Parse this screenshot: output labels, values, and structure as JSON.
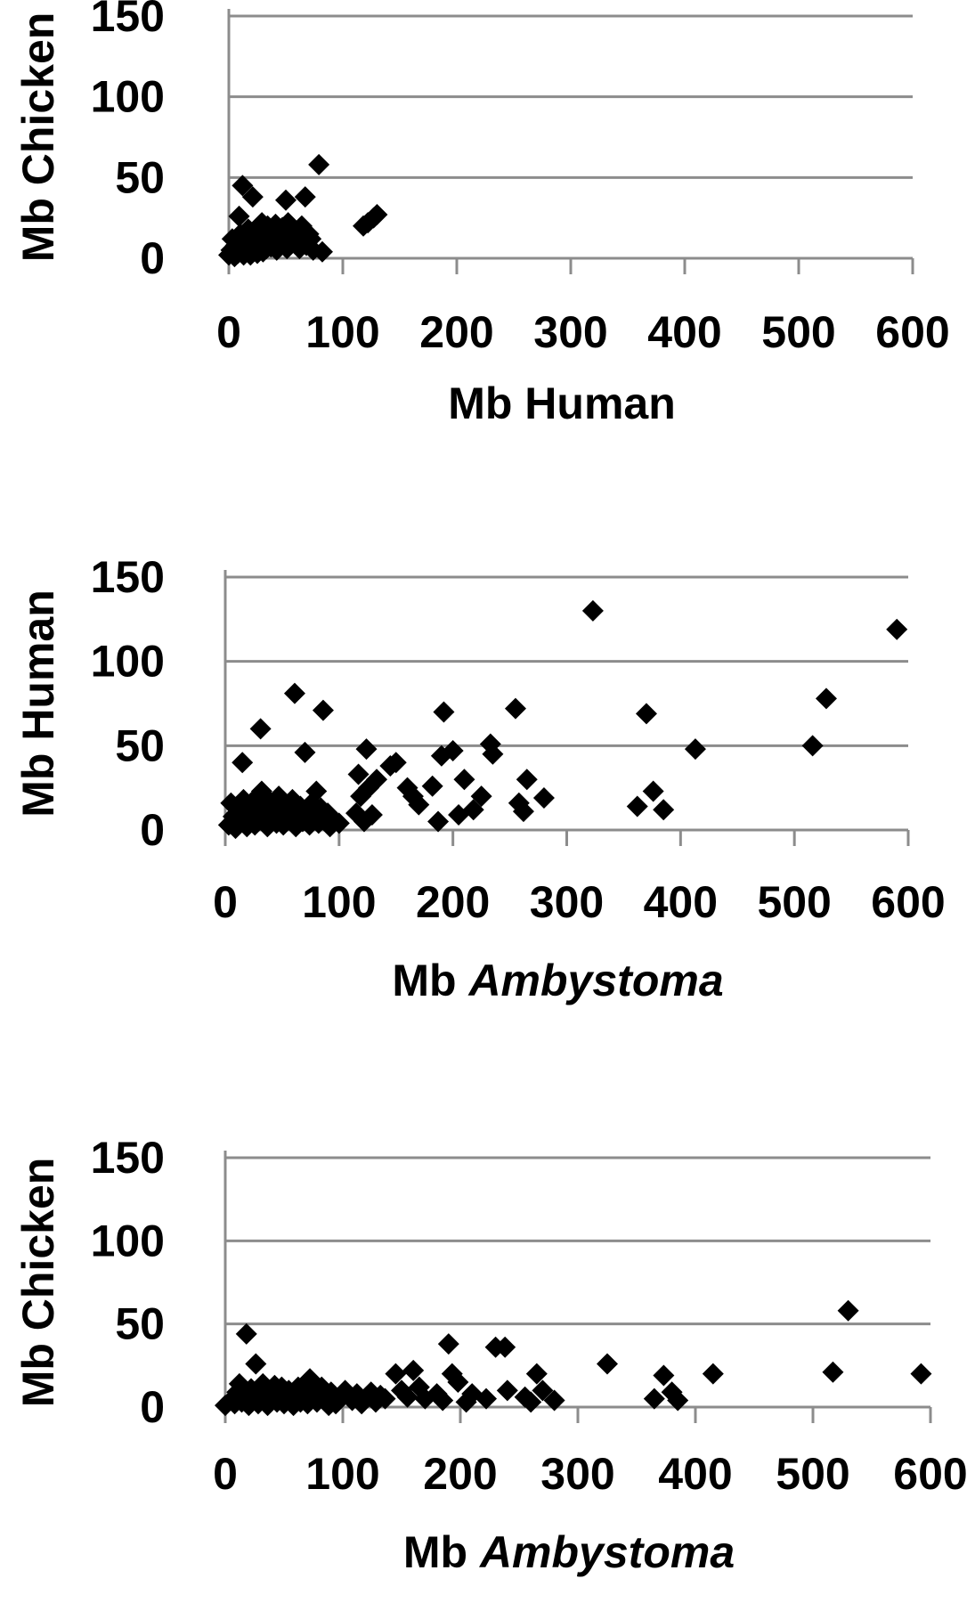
{
  "chart_data": [
    {
      "type": "scatter",
      "xlabel": "Mb Human",
      "ylabel": "Mb Chicken",
      "xlim": [
        0,
        600
      ],
      "ylim": [
        0,
        150
      ],
      "x_ticks": [
        "0",
        "100",
        "200",
        "300",
        "400",
        "500",
        "600"
      ],
      "y_ticks": [
        "0",
        "50",
        "100",
        "150"
      ],
      "grid": "horizontal",
      "marker": "diamond",
      "series": [
        {
          "points": [
            [
              0,
              2
            ],
            [
              2,
              5
            ],
            [
              3,
              12
            ],
            [
              5,
              1
            ],
            [
              6,
              8
            ],
            [
              8,
              3
            ],
            [
              9,
              26
            ],
            [
              10,
              15
            ],
            [
              11,
              6
            ],
            [
              12,
              45
            ],
            [
              13,
              2
            ],
            [
              14,
              10
            ],
            [
              15,
              4
            ],
            [
              17,
              18
            ],
            [
              18,
              7
            ],
            [
              19,
              2
            ],
            [
              20,
              13
            ],
            [
              21,
              38
            ],
            [
              23,
              5
            ],
            [
              24,
              9
            ],
            [
              25,
              3
            ],
            [
              27,
              16
            ],
            [
              28,
              8
            ],
            [
              29,
              22
            ],
            [
              30,
              4
            ],
            [
              31,
              11
            ],
            [
              33,
              6
            ],
            [
              34,
              20
            ],
            [
              35,
              14
            ],
            [
              37,
              7
            ],
            [
              38,
              17
            ],
            [
              40,
              10
            ],
            [
              41,
              21
            ],
            [
              42,
              5
            ],
            [
              44,
              15
            ],
            [
              45,
              8
            ],
            [
              47,
              19
            ],
            [
              48,
              12
            ],
            [
              50,
              36
            ],
            [
              51,
              6
            ],
            [
              52,
              22
            ],
            [
              54,
              10
            ],
            [
              56,
              17
            ],
            [
              58,
              9
            ],
            [
              60,
              14
            ],
            [
              62,
              6
            ],
            [
              64,
              20
            ],
            [
              66,
              11
            ],
            [
              67,
              38
            ],
            [
              68,
              8
            ],
            [
              70,
              15
            ],
            [
              72,
              12
            ],
            [
              74,
              5
            ],
            [
              79,
              58
            ],
            [
              82,
              4
            ],
            [
              118,
              20
            ],
            [
              122,
              22
            ],
            [
              127,
              25
            ],
            [
              130,
              27
            ]
          ]
        }
      ]
    },
    {
      "type": "scatter",
      "xlabel": "Mb Ambystoma",
      "ylabel": "Mb Human",
      "xlim": [
        0,
        600
      ],
      "ylim": [
        0,
        150
      ],
      "x_ticks": [
        "0",
        "100",
        "200",
        "300",
        "400",
        "500",
        "600"
      ],
      "y_ticks": [
        "0",
        "50",
        "100",
        "150"
      ],
      "grid": "horizontal",
      "marker": "diamond",
      "series": [
        {
          "points": [
            [
              3,
              3
            ],
            [
              5,
              16
            ],
            [
              7,
              8
            ],
            [
              9,
              1
            ],
            [
              11,
              12
            ],
            [
              13,
              4
            ],
            [
              15,
              40
            ],
            [
              16,
              18
            ],
            [
              17,
              7
            ],
            [
              19,
              2
            ],
            [
              20,
              14
            ],
            [
              22,
              6
            ],
            [
              24,
              10
            ],
            [
              26,
              3
            ],
            [
              27,
              19
            ],
            [
              29,
              8
            ],
            [
              31,
              60
            ],
            [
              32,
              23
            ],
            [
              33,
              5
            ],
            [
              35,
              13
            ],
            [
              37,
              2
            ],
            [
              39,
              17
            ],
            [
              41,
              7
            ],
            [
              43,
              11
            ],
            [
              45,
              4
            ],
            [
              47,
              20
            ],
            [
              49,
              9
            ],
            [
              51,
              3
            ],
            [
              53,
              15
            ],
            [
              55,
              6
            ],
            [
              57,
              12
            ],
            [
              59,
              18
            ],
            [
              61,
              81
            ],
            [
              62,
              2
            ],
            [
              64,
              9
            ],
            [
              66,
              14
            ],
            [
              68,
              5
            ],
            [
              70,
              46
            ],
            [
              72,
              11
            ],
            [
              74,
              3
            ],
            [
              76,
              16
            ],
            [
              78,
              8
            ],
            [
              80,
              23
            ],
            [
              82,
              4
            ],
            [
              84,
              13
            ],
            [
              86,
              71
            ],
            [
              88,
              7
            ],
            [
              90,
              10
            ],
            [
              92,
              2
            ],
            [
              95,
              6
            ],
            [
              100,
              4
            ],
            [
              115,
              10
            ],
            [
              117,
              33
            ],
            [
              119,
              20
            ],
            [
              122,
              5
            ],
            [
              124,
              48
            ],
            [
              126,
              25
            ],
            [
              129,
              9
            ],
            [
              133,
              30
            ],
            [
              145,
              38
            ],
            [
              150,
              40
            ],
            [
              160,
              25
            ],
            [
              165,
              20
            ],
            [
              170,
              15
            ],
            [
              182,
              26
            ],
            [
              187,
              5
            ],
            [
              190,
              44
            ],
            [
              192,
              70
            ],
            [
              200,
              47
            ],
            [
              205,
              9
            ],
            [
              210,
              30
            ],
            [
              218,
              12
            ],
            [
              225,
              20
            ],
            [
              233,
              51
            ],
            [
              235,
              45
            ],
            [
              255,
              72
            ],
            [
              258,
              16
            ],
            [
              262,
              11
            ],
            [
              265,
              30
            ],
            [
              280,
              19
            ],
            [
              323,
              130
            ],
            [
              362,
              14
            ],
            [
              370,
              69
            ],
            [
              376,
              23
            ],
            [
              385,
              12
            ],
            [
              413,
              48
            ],
            [
              516,
              50
            ],
            [
              528,
              78
            ],
            [
              590,
              119
            ]
          ]
        }
      ]
    },
    {
      "type": "scatter",
      "xlabel": "Mb Ambystoma",
      "ylabel": "Mb Chicken",
      "xlim": [
        0,
        600
      ],
      "ylim": [
        0,
        150
      ],
      "x_ticks": [
        "0",
        "100",
        "200",
        "300",
        "400",
        "500",
        "600"
      ],
      "y_ticks": [
        "0",
        "50",
        "100",
        "150"
      ],
      "grid": "horizontal",
      "marker": "diamond",
      "series": [
        {
          "points": [
            [
              0,
              1
            ],
            [
              5,
              4
            ],
            [
              8,
              2
            ],
            [
              10,
              9
            ],
            [
              12,
              14
            ],
            [
              14,
              3
            ],
            [
              16,
              6
            ],
            [
              18,
              44
            ],
            [
              20,
              1
            ],
            [
              22,
              11
            ],
            [
              24,
              5
            ],
            [
              26,
              26
            ],
            [
              28,
              2
            ],
            [
              30,
              8
            ],
            [
              32,
              14
            ],
            [
              34,
              4
            ],
            [
              36,
              1
            ],
            [
              38,
              10
            ],
            [
              40,
              6
            ],
            [
              42,
              13
            ],
            [
              44,
              3
            ],
            [
              46,
              8
            ],
            [
              48,
              12
            ],
            [
              50,
              2
            ],
            [
              52,
              6
            ],
            [
              54,
              10
            ],
            [
              56,
              4
            ],
            [
              58,
              1
            ],
            [
              60,
              7
            ],
            [
              62,
              12
            ],
            [
              64,
              3
            ],
            [
              66,
              9
            ],
            [
              68,
              5
            ],
            [
              70,
              2
            ],
            [
              72,
              17
            ],
            [
              74,
              6
            ],
            [
              76,
              10
            ],
            [
              78,
              3
            ],
            [
              80,
              8
            ],
            [
              82,
              12
            ],
            [
              84,
              4
            ],
            [
              86,
              7
            ],
            [
              88,
              1
            ],
            [
              90,
              9
            ],
            [
              92,
              5
            ],
            [
              94,
              2
            ],
            [
              98,
              6
            ],
            [
              102,
              10
            ],
            [
              108,
              4
            ],
            [
              112,
              8
            ],
            [
              116,
              2
            ],
            [
              120,
              6
            ],
            [
              124,
              9
            ],
            [
              128,
              3
            ],
            [
              132,
              7
            ],
            [
              136,
              5
            ],
            [
              145,
              20
            ],
            [
              150,
              10
            ],
            [
              155,
              6
            ],
            [
              160,
              22
            ],
            [
              165,
              12
            ],
            [
              170,
              5
            ],
            [
              180,
              8
            ],
            [
              185,
              4
            ],
            [
              190,
              38
            ],
            [
              193,
              20
            ],
            [
              198,
              15
            ],
            [
              205,
              3
            ],
            [
              210,
              8
            ],
            [
              222,
              5
            ],
            [
              230,
              36
            ],
            [
              238,
              36
            ],
            [
              240,
              10
            ],
            [
              255,
              6
            ],
            [
              260,
              3
            ],
            [
              265,
              20
            ],
            [
              270,
              10
            ],
            [
              280,
              4
            ],
            [
              325,
              26
            ],
            [
              365,
              5
            ],
            [
              373,
              19
            ],
            [
              380,
              9
            ],
            [
              385,
              4
            ],
            [
              415,
              20
            ],
            [
              517,
              21
            ],
            [
              530,
              58
            ],
            [
              592,
              20
            ]
          ]
        }
      ]
    }
  ]
}
